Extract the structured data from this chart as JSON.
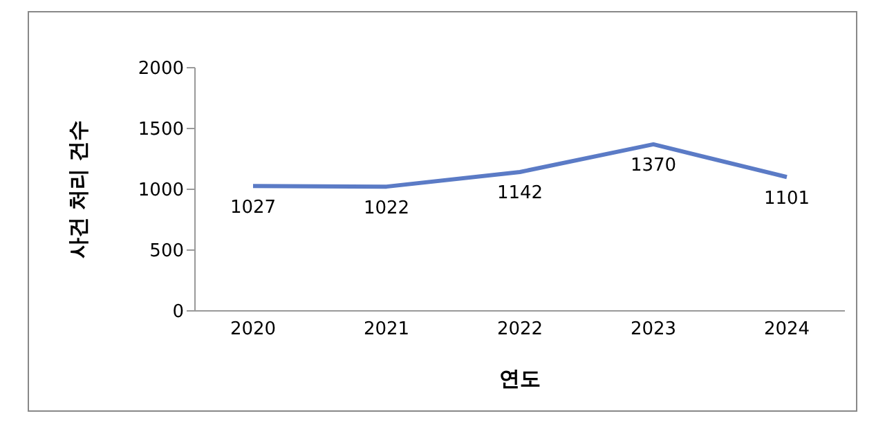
{
  "chart_data": {
    "type": "line",
    "xlabel": "연도",
    "ylabel": "사건 처리 건수",
    "categories": [
      "2020",
      "2021",
      "2022",
      "2023",
      "2024"
    ],
    "series": [
      {
        "color": "#5b7bc6",
        "values": [
          1027,
          1022,
          1142,
          1370,
          1101
        ]
      }
    ],
    "ylim": [
      0,
      2000
    ],
    "yticks": [
      0,
      500,
      1000,
      1500,
      2000
    ],
    "grid": false,
    "legend": false,
    "marker": "none",
    "line_style": "solid",
    "data_labels": true
  }
}
